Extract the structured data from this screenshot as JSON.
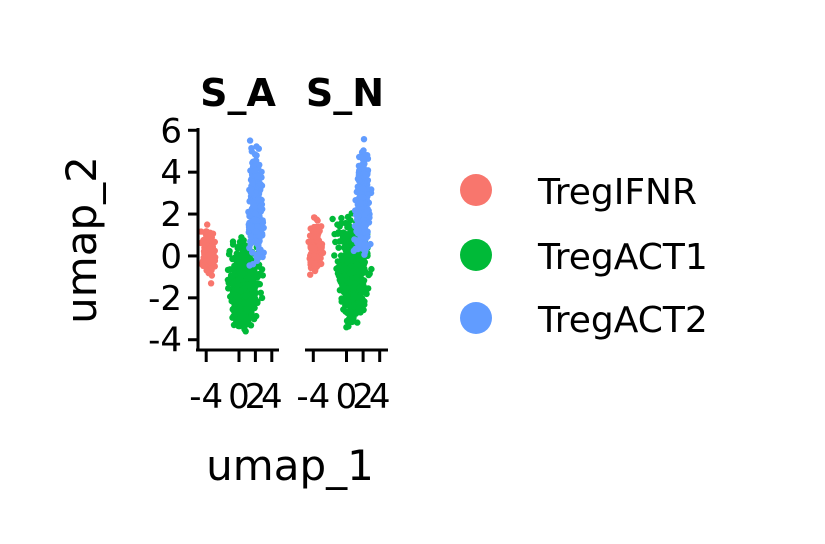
{
  "chart_data": {
    "type": "scatter",
    "xlabel": "umap_1",
    "ylabel": "umap_2",
    "ylim": [
      -4.3,
      6.3
    ],
    "xlim": [
      -5,
      5
    ],
    "yticks": [
      6,
      4,
      2,
      0,
      -2,
      -4
    ],
    "ytick_labels": [
      "6",
      "4",
      "2",
      "0",
      "-2",
      "-4"
    ],
    "xticks": [
      -4,
      0,
      2,
      4
    ],
    "xtick_labels": [
      "-4",
      "0",
      "2",
      "4"
    ],
    "legend_position": "right",
    "legend": [
      {
        "label": "TregIFNR",
        "color": "#F8766D"
      },
      {
        "label": "TregACT1",
        "color": "#00BA38"
      },
      {
        "label": "TregACT2",
        "color": "#619CFF"
      }
    ],
    "panels": [
      {
        "title": "S_A",
        "clusters": [
          {
            "name": "TregIFNR",
            "color": "#F8766D",
            "x_range": [
              -4.8,
              -2.6
            ],
            "y_range": [
              -1.4,
              1.8
            ]
          },
          {
            "name": "TregACT1",
            "color": "#00BA38",
            "x_range": [
              -2.8,
              4.2
            ],
            "y_range": [
              -4.1,
              1.2
            ]
          },
          {
            "name": "TregACT2",
            "color": "#619CFF",
            "x_range": [
              0.5,
              3.5
            ],
            "y_range": [
              -1.0,
              5.8
            ]
          }
        ]
      },
      {
        "title": "S_N",
        "clusters": [
          {
            "name": "TregIFNR",
            "color": "#F8766D",
            "x_range": [
              -4.8,
              -2.5
            ],
            "y_range": [
              -1.3,
              2.1
            ]
          },
          {
            "name": "TregACT1",
            "color": "#00BA38",
            "x_range": [
              -2.8,
              4.3
            ],
            "y_range": [
              -4.0,
              2.6
            ]
          },
          {
            "name": "TregACT2",
            "color": "#619CFF",
            "x_range": [
              0.4,
              3.6
            ],
            "y_range": [
              -1.0,
              6.0
            ]
          }
        ]
      }
    ]
  }
}
